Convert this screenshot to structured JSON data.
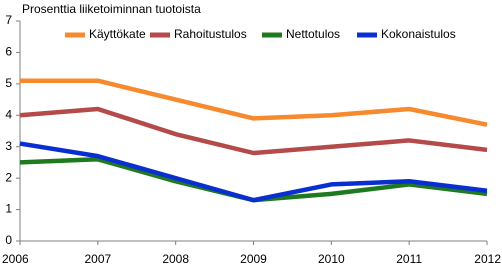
{
  "chart_data": {
    "type": "line",
    "title": "Prosenttia liiketoiminnan tuotoista",
    "x": [
      2006,
      2007,
      2008,
      2009,
      2010,
      2011,
      2012
    ],
    "xlim": [
      2006,
      2012
    ],
    "xticks": [
      2006,
      2007,
      2008,
      2009,
      2010,
      2011,
      2012
    ],
    "ylim": [
      0,
      7
    ],
    "yticks": [
      0,
      1,
      2,
      3,
      4,
      5,
      6,
      7
    ],
    "grid": false,
    "legend": "top",
    "series": [
      {
        "name": "Käyttökate",
        "color": "#f7892f",
        "values": [
          5.1,
          5.1,
          4.5,
          3.9,
          4.0,
          4.2,
          3.7
        ]
      },
      {
        "name": "Rahoitustulos",
        "color": "#b54a4a",
        "values": [
          4.0,
          4.2,
          3.4,
          2.8,
          3.0,
          3.2,
          2.9
        ]
      },
      {
        "name": "Nettotulos",
        "color": "#1f7a1f",
        "values": [
          2.5,
          2.6,
          1.9,
          1.3,
          1.5,
          1.8,
          1.5
        ]
      },
      {
        "name": "Kokonaistulos",
        "color": "#0a2fd0",
        "values": [
          3.1,
          2.7,
          2.0,
          1.3,
          1.8,
          1.9,
          1.6
        ]
      }
    ]
  }
}
